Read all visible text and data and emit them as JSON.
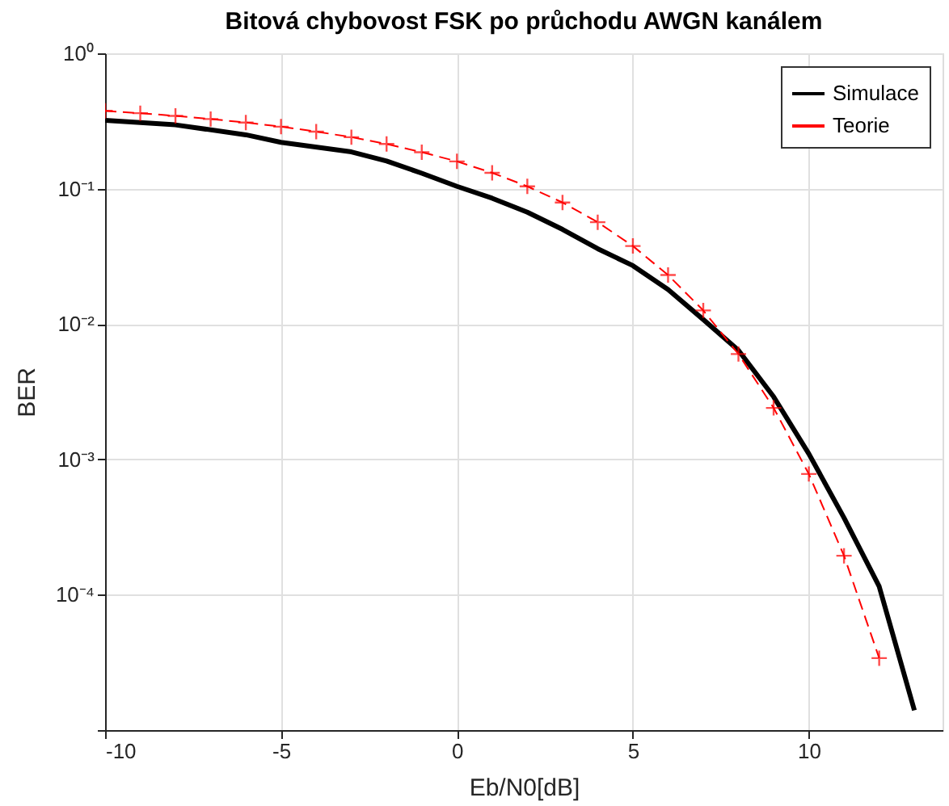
{
  "chart_data": {
    "type": "line",
    "title": "Bitová chybovost FSK po průchodu AWGN kanálem",
    "xlabel": "Eb/N0[dB]",
    "ylabel": "BER",
    "log": "y",
    "xlim": [
      -10,
      13.8
    ],
    "xticks": [
      -10,
      -5,
      0,
      5,
      10
    ],
    "ylim": [
      1e-05,
      1
    ],
    "yticks": [
      {
        "value": 1e-05,
        "label": null
      },
      {
        "value": 0.0001,
        "label": "10⁻⁴"
      },
      {
        "value": 0.001,
        "label": "10⁻³"
      },
      {
        "value": 0.01,
        "label": "10⁻²"
      },
      {
        "value": 0.1,
        "label": "10⁻¹"
      },
      {
        "value": 1,
        "label": "10⁰"
      }
    ],
    "grid": true,
    "legend": "top right",
    "series": [
      {
        "name": "Simulace",
        "color": "#000000",
        "line_style": "solid",
        "marker": "none",
        "x": [
          -10,
          -8,
          -6,
          -5,
          -3,
          -2,
          -1,
          0,
          1,
          2,
          3,
          4,
          5,
          6,
          7,
          8,
          9,
          10,
          11,
          12,
          13
        ],
        "values": [
          0.32,
          0.296,
          0.25,
          0.22,
          0.187,
          0.16,
          0.13,
          0.104,
          0.085,
          0.067,
          0.05,
          0.036,
          0.027,
          0.018,
          0.0108,
          0.0064,
          0.0029,
          0.0011,
          0.00037,
          0.000115,
          1.4e-05
        ]
      },
      {
        "name": "Teorie",
        "color": "#ff0000",
        "line_style": "dashed",
        "marker": "cross",
        "x": [
          -10,
          -9,
          -8,
          -7,
          -6,
          -5,
          -4,
          -3,
          -2,
          -1,
          0,
          1,
          2,
          3,
          4,
          5,
          6,
          7,
          8,
          9,
          10,
          11,
          12
        ],
        "values": [
          0.376,
          0.361,
          0.345,
          0.327,
          0.308,
          0.287,
          0.264,
          0.24,
          0.214,
          0.186,
          0.159,
          0.131,
          0.104,
          0.079,
          0.0565,
          0.0377,
          0.023,
          0.0126,
          0.006,
          0.0024,
          0.00078,
          0.000194,
          3.4e-05
        ]
      }
    ]
  }
}
